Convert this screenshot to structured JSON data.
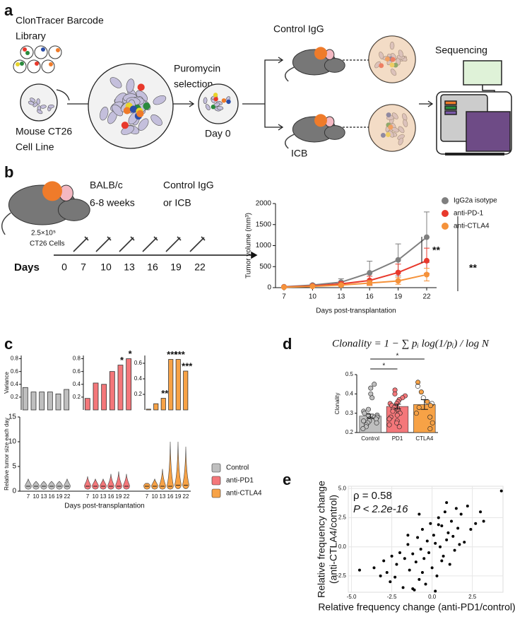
{
  "panel_a": {
    "label": "a",
    "library": [
      "ClonTracer Barcode",
      "Library"
    ],
    "cell_line": [
      "Mouse CT26",
      "Cell Line"
    ],
    "selection": [
      "Puromycin",
      "selection"
    ],
    "day0": "Day 0",
    "control": "Control IgG",
    "icb": "ICB",
    "sequencing": "Sequencing"
  },
  "panel_b": {
    "label": "b",
    "strain": [
      "BALB/c",
      "6-8 weeks"
    ],
    "treatment": [
      "Control IgG",
      "or ICB"
    ],
    "cells": [
      "2.5×10⁵",
      "CT26 Cells"
    ],
    "days_label": "Days",
    "days": [
      0,
      7,
      10,
      13,
      16,
      19,
      22
    ]
  },
  "panel_c": {
    "label": "c"
  },
  "panel_d": {
    "label": "d",
    "formula": "Clonality = 1 − ∑ pᵢ log(1/pᵢ) / log N"
  },
  "panel_e": {
    "label": "e"
  },
  "chart_data": [
    {
      "type": "line",
      "y_label": "Tumor volume (mm³)",
      "x_label": "Days post-transplantation",
      "categories": [
        "7",
        "10",
        "13",
        "16",
        "19",
        "22"
      ],
      "ylim": [
        0,
        2000
      ],
      "yticks": [
        0,
        500,
        1000,
        1500,
        2000
      ],
      "series": [
        {
          "name": "IgG2a isotype",
          "color": "#7f7f7f",
          "values": [
            20,
            60,
            130,
            350,
            660,
            1200
          ],
          "errors": [
            10,
            30,
            80,
            280,
            380,
            600
          ]
        },
        {
          "name": "anti-PD-1",
          "color": "#e8392c",
          "values": [
            15,
            40,
            90,
            170,
            360,
            640
          ],
          "errors": [
            8,
            20,
            50,
            100,
            200,
            300
          ]
        },
        {
          "name": "anti-CTLA4",
          "color": "#f5923a",
          "values": [
            10,
            30,
            60,
            110,
            160,
            310
          ],
          "errors": [
            5,
            15,
            30,
            60,
            80,
            150
          ]
        }
      ],
      "significance": [
        {
          "text": "**",
          "color": "#e8392c"
        },
        {
          "text": "**",
          "color": "#f5923a"
        }
      ]
    },
    {
      "type": "bar",
      "y_label": "Variance",
      "color": "#bfbfbf",
      "values": [
        0.35,
        0.28,
        0.28,
        0.28,
        0.25,
        0.32
      ],
      "ylim": [
        0,
        0.85
      ],
      "yticks": [
        0.2,
        0.4,
        0.6,
        0.8
      ],
      "significance": [
        null,
        null,
        null,
        null,
        null,
        null
      ]
    },
    {
      "type": "bar",
      "color": "#f4777a",
      "values": [
        0.18,
        0.42,
        0.4,
        0.6,
        0.7,
        0.8
      ],
      "ylim": [
        0,
        0.85
      ],
      "yticks": [
        0.2,
        0.4,
        0.6,
        0.8
      ],
      "significance": [
        null,
        null,
        null,
        null,
        "*",
        "*"
      ]
    },
    {
      "type": "bar",
      "color": "#f7a246",
      "values": [
        0.01,
        0.08,
        0.15,
        0.65,
        0.65,
        0.5
      ],
      "ylim": [
        0,
        0.7
      ],
      "yticks": [
        0.2,
        0.4,
        0.6
      ],
      "significance": [
        null,
        null,
        "**",
        "***",
        "***",
        "***"
      ]
    },
    {
      "type": "violin",
      "y_label": "Relative tumor size each day",
      "x_label": "Days post-transplantation",
      "categories": [
        "7",
        "10",
        "13",
        "16",
        "19",
        "22"
      ],
      "ylim": [
        0,
        15
      ],
      "yticks": [
        0,
        5,
        10,
        15
      ],
      "series": [
        {
          "name": "Control",
          "color": "#bfbfbf",
          "values": [
            1,
            1,
            1,
            1,
            1,
            1
          ],
          "maxes": [
            2.5,
            2,
            2,
            2,
            2,
            2.5
          ]
        },
        {
          "name": "anti-PD1",
          "color": "#f4777a",
          "values": [
            1,
            1,
            1,
            1,
            1,
            1
          ],
          "maxes": [
            3,
            2.5,
            2.5,
            3.5,
            4,
            3.5
          ]
        },
        {
          "name": "anti-CTLA4",
          "color": "#f7a246",
          "values": [
            1,
            1,
            1,
            1,
            1.2,
            1.2
          ],
          "maxes": [
            1.5,
            2.5,
            4.5,
            10,
            10,
            9
          ]
        }
      ]
    },
    {
      "type": "bar",
      "y_label": "Clonality",
      "categories": [
        "Control",
        "PD1",
        "CTLA4"
      ],
      "colors": [
        "#bfbfbf",
        "#f4777a",
        "#f7a246"
      ],
      "values": [
        0.285,
        0.335,
        0.345
      ],
      "errors": [
        0.01,
        0.012,
        0.025
      ],
      "ylim": [
        0.2,
        0.5
      ],
      "yticks": [
        0.2,
        0.3,
        0.4,
        0.5
      ],
      "points": [
        [
          0.45,
          0.43,
          0.4,
          0.38,
          0.32,
          0.31,
          0.3,
          0.29,
          0.29,
          0.28,
          0.28,
          0.27,
          0.27,
          0.26,
          0.26,
          0.25,
          0.25,
          0.24,
          0.23,
          0.22
        ],
        [
          0.42,
          0.4,
          0.39,
          0.38,
          0.37,
          0.36,
          0.35,
          0.35,
          0.34,
          0.33,
          0.33,
          0.32,
          0.32,
          0.31,
          0.31,
          0.3,
          0.3,
          0.29,
          0.28,
          0.27,
          0.26,
          0.25,
          0.24,
          0.23
        ],
        [
          0.46,
          0.44,
          0.41,
          0.38,
          0.36,
          0.35,
          0.34,
          0.33,
          0.3,
          0.28,
          0.25,
          0.22
        ]
      ],
      "significance": [
        "*",
        "*"
      ]
    },
    {
      "type": "scatter",
      "x_label": "Relative frequency change (anti-PD1/control)",
      "y_label": [
        "Relative frequency change",
        "(anti-CTLA4/control)"
      ],
      "annotations": [
        "ρ = 0.58",
        "P < 2.2e-16"
      ],
      "color": "#000000",
      "xlim": [
        -5.2,
        4.4
      ],
      "ylim": [
        -3.9,
        5.2
      ],
      "xticks": [
        {
          "value": -5,
          "label": "-5.0"
        },
        {
          "value": -2.5,
          "label": "-2.5"
        },
        {
          "value": 0,
          "label": "0.0"
        },
        {
          "value": 2.5,
          "label": "2.5"
        }
      ],
      "yticks": [
        {
          "value": -2.5,
          "label": "-2.5"
        },
        {
          "value": 0,
          "label": "0.0"
        },
        {
          "value": 2.5,
          "label": "2.5"
        },
        {
          "value": 5,
          "label": "5.0"
        }
      ],
      "x": [
        -4.5,
        -3.6,
        -3.2,
        -3.0,
        -2.8,
        -2.5,
        -2.3,
        -2.2,
        -2.0,
        -1.8,
        -1.7,
        -1.5,
        -1.4,
        -1.2,
        -1.1,
        -1.0,
        -0.9,
        -0.8,
        -0.7,
        -0.6,
        -0.5,
        -0.4,
        -0.3,
        -0.2,
        -0.1,
        0.0,
        0.1,
        0.2,
        0.3,
        0.4,
        0.5,
        0.6,
        0.7,
        0.8,
        0.9,
        1.0,
        1.1,
        1.2,
        1.3,
        1.5,
        1.6,
        1.8,
        2.0,
        2.2,
        2.4,
        2.7,
        3.0,
        3.2,
        4.3,
        -1.5,
        -0.6,
        0.2,
        0.9,
        1.4,
        -2.6,
        -0.8,
        0.4,
        1.7,
        -1.2,
        0.6
      ],
      "values": [
        -2.0,
        -1.8,
        -2.5,
        -1.2,
        -2.2,
        -0.8,
        -2.6,
        -1.5,
        -0.5,
        -3.5,
        -1.0,
        0.2,
        -2.0,
        -0.6,
        -3.7,
        -1.3,
        0.8,
        -2.8,
        -0.2,
        1.5,
        -1.0,
        -3.2,
        0.5,
        -0.5,
        2.0,
        -1.8,
        1.0,
        0.3,
        -2.5,
        2.5,
        0.0,
        1.8,
        -0.8,
        3.0,
        0.6,
        1.2,
        -1.5,
        2.2,
        0.9,
        3.3,
        1.6,
        2.8,
        0.4,
        3.5,
        1.5,
        2.0,
        3.0,
        2.2,
        4.8,
        1.0,
        -2.2,
        -3.8,
        3.8,
        -0.3,
        -3.0,
        2.8,
        1.9,
        0.2,
        -3.6,
        -1.2
      ]
    }
  ]
}
